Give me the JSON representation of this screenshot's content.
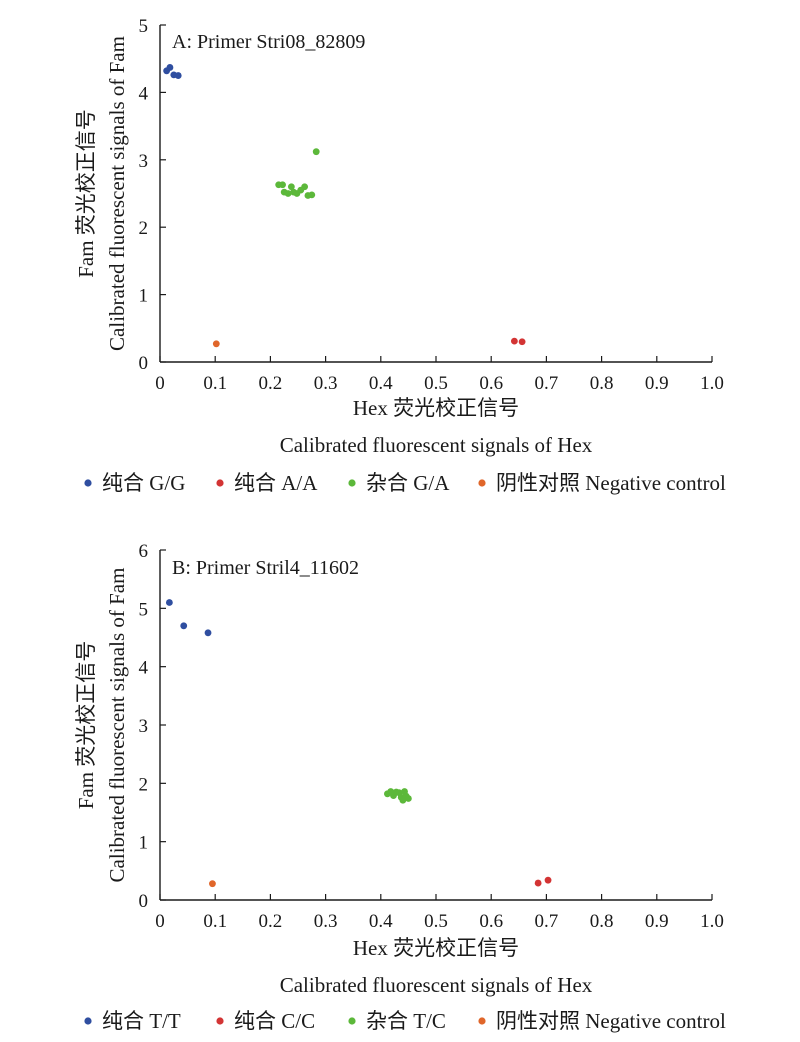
{
  "chart_data": [
    {
      "type": "scatter",
      "title": "A: Primer Stri08_82809",
      "xlabel": [
        "Hex 荧光校正信号",
        "Calibrated fluorescent signals of Hex"
      ],
      "ylabel": [
        "Fam 荧光校正信号",
        "Calibrated fluorescent signals of Fam"
      ],
      "xlim": [
        0,
        1.0
      ],
      "ylim": [
        0,
        5
      ],
      "x_ticks": [
        "0",
        "0.1",
        "0.2",
        "0.3",
        "0.4",
        "0.5",
        "0.6",
        "0.7",
        "0.8",
        "0.9",
        "1.0"
      ],
      "y_ticks": [
        "0",
        "1",
        "2",
        "3",
        "4",
        "5"
      ],
      "legend_position": "bottom",
      "series": [
        {
          "name": "纯合 G/G",
          "color": "#2f4ea0",
          "points": [
            [
              0.012,
              4.32
            ],
            [
              0.018,
              4.37
            ],
            [
              0.025,
              4.26
            ],
            [
              0.033,
              4.25
            ]
          ]
        },
        {
          "name": "纯合 A/A",
          "color": "#d33434",
          "points": [
            [
              0.642,
              0.31
            ],
            [
              0.656,
              0.3
            ]
          ]
        },
        {
          "name": "杂合 G/A",
          "color": "#5cb83a",
          "points": [
            [
              0.215,
              2.63
            ],
            [
              0.222,
              2.63
            ],
            [
              0.225,
              2.52
            ],
            [
              0.232,
              2.5
            ],
            [
              0.238,
              2.6
            ],
            [
              0.242,
              2.52
            ],
            [
              0.248,
              2.5
            ],
            [
              0.255,
              2.55
            ],
            [
              0.262,
              2.6
            ],
            [
              0.268,
              2.47
            ],
            [
              0.275,
              2.48
            ],
            [
              0.283,
              3.12
            ]
          ]
        },
        {
          "name": "阴性对照 Negative control",
          "color": "#e0662a",
          "points": [
            [
              0.102,
              0.27
            ]
          ]
        }
      ]
    },
    {
      "type": "scatter",
      "title": "B: Primer Stril4_11602",
      "xlabel": [
        "Hex 荧光校正信号",
        "Calibrated fluorescent signals of Hex"
      ],
      "ylabel": [
        "Fam 荧光校正信号",
        "Calibrated fluorescent signals of Fam"
      ],
      "xlim": [
        0,
        1.0
      ],
      "ylim": [
        0,
        6
      ],
      "x_ticks": [
        "0",
        "0.1",
        "0.2",
        "0.3",
        "0.4",
        "0.5",
        "0.6",
        "0.7",
        "0.8",
        "0.9",
        "1.0"
      ],
      "y_ticks": [
        "0",
        "1",
        "2",
        "3",
        "4",
        "5",
        "6"
      ],
      "legend_position": "bottom",
      "series": [
        {
          "name": "纯合 T/T",
          "color": "#2f4ea0",
          "points": [
            [
              0.017,
              5.1
            ],
            [
              0.043,
              4.7
            ],
            [
              0.087,
              4.58
            ]
          ]
        },
        {
          "name": "纯合 C/C",
          "color": "#d33434",
          "points": [
            [
              0.685,
              0.29
            ],
            [
              0.703,
              0.34
            ]
          ]
        },
        {
          "name": "杂合 T/C",
          "color": "#5cb83a",
          "points": [
            [
              0.412,
              1.82
            ],
            [
              0.418,
              1.86
            ],
            [
              0.423,
              1.79
            ],
            [
              0.428,
              1.85
            ],
            [
              0.433,
              1.84
            ],
            [
              0.437,
              1.76
            ],
            [
              0.44,
              1.71
            ],
            [
              0.443,
              1.86
            ],
            [
              0.446,
              1.78
            ],
            [
              0.45,
              1.74
            ]
          ]
        },
        {
          "name": "阴性对照  Negative control",
          "color": "#e0662a",
          "points": [
            [
              0.095,
              0.28
            ]
          ]
        }
      ]
    }
  ]
}
